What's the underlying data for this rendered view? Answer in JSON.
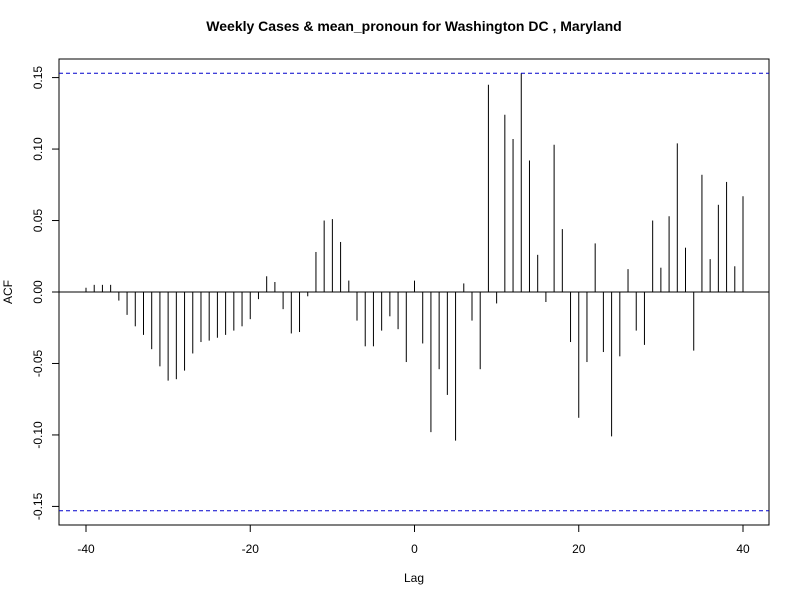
{
  "chart_data": {
    "type": "bar",
    "title": "Weekly Cases & mean_pronoun for Washington DC , Maryland",
    "xlabel": "Lag",
    "ylabel": "ACF",
    "xlim": [
      -40,
      40
    ],
    "ylim": [
      -0.163,
      0.163
    ],
    "x_ticks": [
      "-40",
      "-20",
      "0",
      "20",
      "40"
    ],
    "y_ticks": [
      "-0.15",
      "-0.10",
      "-0.05",
      "0.00",
      "0.05",
      "0.10",
      "0.15"
    ],
    "confidence_bound": 0.153,
    "bound_color": "#0000cc",
    "bar_color": "#000000",
    "grid": false,
    "x": [
      -40,
      -39,
      -38,
      -37,
      -36,
      -35,
      -34,
      -33,
      -32,
      -31,
      -30,
      -29,
      -28,
      -27,
      -26,
      -25,
      -24,
      -23,
      -22,
      -21,
      -20,
      -19,
      -18,
      -17,
      -16,
      -15,
      -14,
      -13,
      -12,
      -11,
      -10,
      -9,
      -8,
      -7,
      -6,
      -5,
      -4,
      -3,
      -2,
      -1,
      0,
      1,
      2,
      3,
      4,
      5,
      6,
      7,
      8,
      9,
      10,
      11,
      12,
      13,
      14,
      15,
      16,
      17,
      18,
      19,
      20,
      21,
      22,
      23,
      24,
      25,
      26,
      27,
      28,
      29,
      30,
      31,
      32,
      33,
      34,
      35,
      36,
      37,
      38,
      39,
      40
    ],
    "values": [
      0.003,
      0.005,
      0.005,
      0.005,
      -0.006,
      -0.016,
      -0.024,
      -0.03,
      -0.04,
      -0.052,
      -0.062,
      -0.061,
      -0.055,
      -0.043,
      -0.035,
      -0.034,
      -0.032,
      -0.03,
      -0.027,
      -0.024,
      -0.019,
      -0.005,
      0.011,
      0.007,
      -0.012,
      -0.029,
      -0.028,
      -0.003,
      0.028,
      0.05,
      0.051,
      0.035,
      0.008,
      -0.02,
      -0.038,
      -0.038,
      -0.027,
      -0.017,
      -0.026,
      -0.049,
      0.008,
      -0.036,
      -0.098,
      -0.054,
      -0.072,
      -0.104,
      0.006,
      -0.02,
      -0.054,
      0.145,
      -0.008,
      0.124,
      0.107,
      0.153,
      0.092,
      0.026,
      -0.007,
      0.103,
      0.044,
      -0.035,
      -0.088,
      -0.049,
      0.034,
      -0.042,
      -0.101,
      -0.045,
      0.016,
      -0.027,
      -0.037,
      0.05,
      0.017,
      0.053,
      0.104,
      0.031,
      -0.041,
      0.082,
      0.023,
      0.061,
      0.077,
      0.018,
      0.067
    ]
  }
}
